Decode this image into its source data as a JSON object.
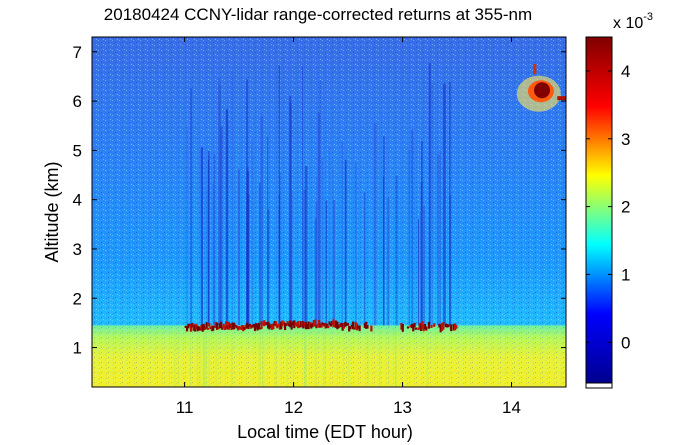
{
  "chart_data": {
    "type": "heatmap",
    "title": "20180424 CCNY-lidar range-corrected returns at 355-nm",
    "xlabel": "Local time (EDT hour)",
    "ylabel": "Altitude (km)",
    "xlim": [
      10.15,
      14.5
    ],
    "ylim": [
      0.2,
      7.3
    ],
    "x_ticks": [
      11,
      12,
      13,
      14
    ],
    "y_ticks": [
      1,
      2,
      3,
      4,
      5,
      6,
      7
    ],
    "colorbar": {
      "multiplier_label": "x 10",
      "multiplier_exponent": "-3",
      "ticks": [
        0,
        1,
        2,
        3,
        4
      ],
      "range": [
        -0.6,
        4.5
      ],
      "colormap": "jet",
      "colors": [
        "#00008f",
        "#0000ff",
        "#00ffff",
        "#ffff00",
        "#ff0000",
        "#800000"
      ]
    },
    "features": [
      {
        "type": "boundary-layer",
        "x_range": [
          10.15,
          14.5
        ],
        "y_range": [
          0.2,
          1.45
        ],
        "value": 2.2
      },
      {
        "type": "cloud-band",
        "x_range": [
          11.0,
          13.5
        ],
        "y": 1.42,
        "value": 4.5
      },
      {
        "type": "cloud-patch",
        "x_range": [
          14.15,
          14.45
        ],
        "y_range": [
          5.9,
          6.6
        ],
        "value": 4.5
      }
    ],
    "grid": false
  }
}
